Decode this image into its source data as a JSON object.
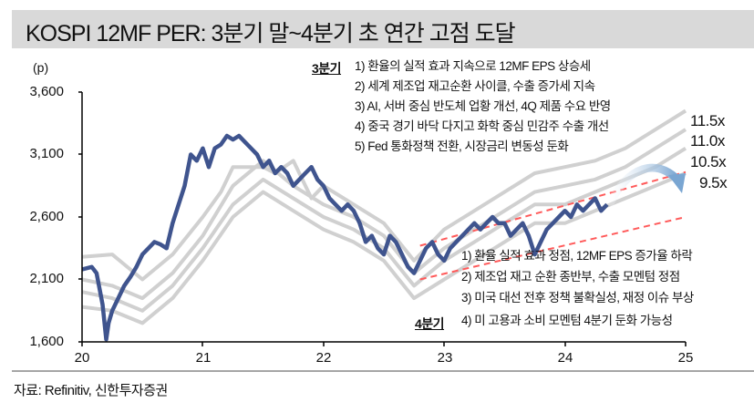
{
  "header": {
    "title": "KOSPI 12MF PER: 3분기 말~4분기 초 연간 고점 도달"
  },
  "chart_data": {
    "type": "line",
    "title": "KOSPI 12MF PER: 3분기 말~4분기 초 연간 고점 도달",
    "xlabel": "",
    "ylabel": "(p)",
    "ylim": [
      1600,
      3600
    ],
    "yticks": [
      "3,600",
      "3,100",
      "2,600",
      "2,100",
      "1,600"
    ],
    "xticks": [
      "20",
      "21",
      "22",
      "23",
      "24",
      "25"
    ],
    "xlim": [
      2020,
      2025
    ],
    "grid": false,
    "series": [
      {
        "name": "KOSPI",
        "color": "#3f548e",
        "x": [
          2020.0,
          2020.08,
          2020.12,
          2020.17,
          2020.2,
          2020.22,
          2020.25,
          2020.3,
          2020.35,
          2020.4,
          2020.45,
          2020.5,
          2020.55,
          2020.6,
          2020.65,
          2020.7,
          2020.75,
          2020.8,
          2020.85,
          2020.9,
          2020.95,
          2021.0,
          2021.05,
          2021.1,
          2021.15,
          2021.2,
          2021.25,
          2021.3,
          2021.35,
          2021.4,
          2021.45,
          2021.5,
          2021.55,
          2021.6,
          2021.65,
          2021.7,
          2021.75,
          2021.8,
          2021.85,
          2021.9,
          2021.95,
          2022.0,
          2022.05,
          2022.1,
          2022.15,
          2022.2,
          2022.25,
          2022.3,
          2022.35,
          2022.4,
          2022.45,
          2022.5,
          2022.55,
          2022.6,
          2022.65,
          2022.7,
          2022.75,
          2022.8,
          2022.85,
          2022.9,
          2022.95,
          2023.0,
          2023.05,
          2023.1,
          2023.15,
          2023.2,
          2023.25,
          2023.3,
          2023.35,
          2023.4,
          2023.45,
          2023.5,
          2023.55,
          2023.6,
          2023.65,
          2023.7,
          2023.75,
          2023.8,
          2023.85,
          2023.9,
          2023.95,
          2024.0,
          2024.05,
          2024.1,
          2024.15,
          2024.2,
          2024.25,
          2024.3,
          2024.35
        ],
        "values": [
          2180,
          2200,
          2150,
          1900,
          1620,
          1750,
          1850,
          1950,
          2050,
          2120,
          2200,
          2300,
          2350,
          2400,
          2380,
          2350,
          2550,
          2700,
          2850,
          3100,
          3050,
          3150,
          3000,
          3150,
          3180,
          3250,
          3220,
          3250,
          3200,
          3150,
          3100,
          3000,
          3050,
          2950,
          3000,
          2950,
          2850,
          2900,
          2950,
          3000,
          2900,
          2850,
          2750,
          2700,
          2650,
          2700,
          2650,
          2550,
          2400,
          2450,
          2350,
          2300,
          2450,
          2400,
          2300,
          2200,
          2150,
          2250,
          2350,
          2400,
          2300,
          2250,
          2350,
          2400,
          2450,
          2500,
          2550,
          2500,
          2550,
          2600,
          2550,
          2550,
          2450,
          2500,
          2550,
          2450,
          2300,
          2400,
          2500,
          2550,
          2600,
          2650,
          2600,
          2700,
          2650,
          2700,
          2750,
          2650,
          2700
        ]
      },
      {
        "name": "11.5x",
        "color": "#d0d0d0",
        "x": [
          2020.0,
          2020.25,
          2020.5,
          2020.75,
          2021.0,
          2021.15,
          2021.25,
          2021.4,
          2021.5,
          2021.6,
          2021.75,
          2021.9,
          2022.0,
          2022.25,
          2022.5,
          2022.75,
          2023.0,
          2023.25,
          2023.5,
          2023.75,
          2024.0,
          2024.25,
          2024.5,
          2024.75,
          2025.0
        ],
        "values": [
          2280,
          2300,
          2100,
          2300,
          2600,
          2800,
          3000,
          3000,
          3000,
          2950,
          3050,
          2750,
          2850,
          2700,
          2550,
          2250,
          2500,
          2650,
          2800,
          2950,
          3000,
          3050,
          3150,
          3300,
          3450
        ]
      },
      {
        "name": "11.0x",
        "color": "#d0d0d0",
        "x": [
          2020.0,
          2020.25,
          2020.5,
          2020.75,
          2021.0,
          2021.25,
          2021.5,
          2021.75,
          2022.0,
          2022.25,
          2022.5,
          2022.75,
          2023.0,
          2023.25,
          2023.5,
          2023.75,
          2024.0,
          2024.25,
          2024.5,
          2024.75,
          2025.0
        ],
        "values": [
          2100,
          2050,
          1950,
          2150,
          2450,
          2850,
          3050,
          2850,
          2700,
          2600,
          2450,
          2150,
          2350,
          2500,
          2650,
          2800,
          2850,
          2900,
          3000,
          3150,
          3300
        ]
      },
      {
        "name": "10.5x",
        "color": "#d0d0d0",
        "x": [
          2020.0,
          2020.25,
          2020.5,
          2020.75,
          2021.0,
          2021.25,
          2021.5,
          2021.75,
          2022.0,
          2022.25,
          2022.5,
          2022.75,
          2023.0,
          2023.25,
          2023.5,
          2023.75,
          2024.0,
          2024.25,
          2024.5,
          2024.75,
          2025.0
        ],
        "values": [
          2000,
          1950,
          1850,
          2050,
          2350,
          2700,
          2900,
          2750,
          2600,
          2500,
          2350,
          2050,
          2250,
          2400,
          2550,
          2700,
          2700,
          2800,
          2900,
          3000,
          3150
        ]
      },
      {
        "name": "9.5x",
        "color": "#d0d0d0",
        "x": [
          2020.0,
          2020.25,
          2020.5,
          2020.75,
          2021.0,
          2021.25,
          2021.5,
          2021.75,
          2022.0,
          2022.25,
          2022.5,
          2022.75,
          2023.0,
          2023.25,
          2023.5,
          2023.75,
          2024.0,
          2024.25,
          2024.5,
          2024.75,
          2025.0
        ],
        "values": [
          1880,
          1850,
          1750,
          1950,
          2250,
          2600,
          2800,
          2650,
          2500,
          2400,
          2250,
          1950,
          2100,
          2250,
          2400,
          2550,
          2550,
          2650,
          2750,
          2850,
          2950
        ]
      }
    ],
    "trend_channel": {
      "color": "#ff5a5a",
      "style": "dashed",
      "upper": {
        "x": [
          2022.8,
          2025.0
        ],
        "values": [
          2370,
          2960
        ]
      },
      "lower": {
        "x": [
          2022.8,
          2025.0
        ],
        "values": [
          2100,
          2600
        ]
      }
    },
    "annotations": {
      "q3_label": "3분기",
      "q3_points": [
        "1) 환율의 실적 효과 지속으로 12MF EPS 상승세",
        "2) 세계 제조업 재고순환 사이클, 수출 증가세 지속",
        "3) AI, 서버 중심 반도체 업황 개선, 4Q 제품 수요 반영",
        "4) 중국 경기 바닥 다지고 화학 중심 민감주 수출 개선",
        "5) Fed 통화정책 전환, 시장금리 변동성 둔화"
      ],
      "q4_label": "4분기",
      "q4_points": [
        "1) 환율 실적 효과 정점, 12MF EPS 증가율 하락",
        "2) 제조업 재고 순환 종반부, 수출 모멘텀 정점",
        "3) 미국 대선 전후 정책 불확실성, 재정 이슈 부상",
        "4) 미 고용과 소비 모멘텀 4분기 둔화 가능성"
      ],
      "multiples": [
        "11.5x",
        "11.0x",
        "10.5x",
        "9.5x"
      ],
      "arrow": "curved arrow indicating peak and decline",
      "arrow_color": "#7aa6d2"
    },
    "legend_position": "none"
  },
  "axis": {
    "unit": "(p)",
    "y_ticks": [
      "3,600",
      "3,100",
      "2,600",
      "2,100",
      "1,600"
    ],
    "x_ticks": [
      "20",
      "21",
      "22",
      "23",
      "24",
      "25"
    ]
  },
  "notes": {
    "q3_label": "3분기",
    "q3": [
      "1) 환율의 실적 효과 지속으로 12MF EPS 상승세",
      "2) 세계 제조업 재고순환 사이클, 수출 증가세 지속",
      "3) AI, 서버 중심 반도체 업황 개선, 4Q 제품 수요 반영",
      "4) 중국 경기 바닥 다지고 화학 중심 민감주 수출 개선",
      "5) Fed 통화정책 전환, 시장금리 변동성 둔화"
    ],
    "q4_label": "4분기",
    "q4": [
      "1) 환율 실적 효과 정점, 12MF EPS 증가율 하락",
      "2) 제조업 재고 순환 종반부, 수출 모멘텀 정점",
      "3) 미국 대선 전후 정책 불확실성, 재정 이슈 부상",
      "4) 미 고용과 소비 모멘텀 4분기 둔화 가능성"
    ]
  },
  "multiples": [
    "11.5x",
    "11.0x",
    "10.5x",
    "9.5x"
  ],
  "footer": {
    "source": "자료: Refinitiv, 신한투자증권"
  }
}
